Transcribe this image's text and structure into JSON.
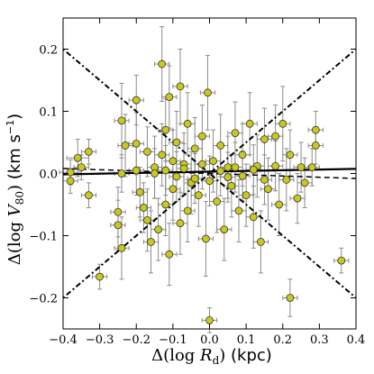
{
  "chart_data": {
    "type": "scatter",
    "title": "",
    "xlabel": "Δ(log R_d) (kpc)",
    "ylabel": "Δ(log V_80) (km s⁻¹)",
    "xlabel_parts": {
      "main": "Δ(log ",
      "var": "R",
      "sub": "d",
      "close": ") ",
      "unit": "(kpc)"
    },
    "ylabel_parts": {
      "main": "Δ(log ",
      "var": "V",
      "sub": "80",
      "close": ") ",
      "unit": "(km s",
      "unit_sup": "−1",
      "unit_close": ")"
    },
    "xlim": [
      -0.4,
      0.4
    ],
    "ylim": [
      -0.25,
      0.25
    ],
    "xticks": [
      -0.4,
      -0.3,
      -0.2,
      -0.1,
      0.0,
      0.1,
      0.2,
      0.3,
      0.4
    ],
    "xtick_labels": [
      "−0.4",
      "−0.3",
      "−0.2",
      "−0.1",
      "0.0",
      "0.1",
      "0.2",
      "0.3",
      "0.4"
    ],
    "yticks": [
      -0.2,
      -0.1,
      0.0,
      0.1,
      0.2
    ],
    "ytick_labels": [
      "−0.2",
      "−0.1",
      "0.0",
      "0.1",
      "0.2"
    ],
    "grid": false,
    "legend": "none",
    "colors": {
      "marker_fill": "#c8c81e",
      "marker_edge": "#333333",
      "errorbar": "#8c8c8c",
      "line": "#000000"
    },
    "lines": [
      {
        "name": "",
        "style": "solid",
        "slope": 0.011,
        "intercept": 0.003
      },
      {
        "name": "",
        "style": "dashed",
        "slope": -0.02,
        "intercept": 0.0
      },
      {
        "name": "",
        "style": "dashdot",
        "slope": 0.5,
        "intercept": 0.0
      },
      {
        "name": "",
        "style": "dashdot",
        "slope": -0.5,
        "intercept": 0.0
      }
    ],
    "points": [
      {
        "x": -0.38,
        "y": 0.002,
        "xerr": 0.03,
        "yerr": 0.02
      },
      {
        "x": -0.36,
        "y": 0.025,
        "xerr": 0.03,
        "yerr": 0.03
      },
      {
        "x": -0.35,
        "y": 0.01,
        "xerr": 0.02,
        "yerr": 0.02
      },
      {
        "x": -0.38,
        "y": -0.012,
        "xerr": 0.02,
        "yerr": 0.02
      },
      {
        "x": -0.33,
        "y": 0.035,
        "xerr": 0.02,
        "yerr": 0.02
      },
      {
        "x": -0.33,
        "y": -0.035,
        "xerr": 0.02,
        "yerr": 0.02
      },
      {
        "x": -0.3,
        "y": -0.166,
        "xerr": 0.02,
        "yerr": 0.02
      },
      {
        "x": -0.24,
        "y": 0.085,
        "xerr": 0.02,
        "yerr": 0.06
      },
      {
        "x": -0.23,
        "y": 0.045,
        "xerr": 0.02,
        "yerr": 0.05
      },
      {
        "x": -0.24,
        "y": 0.0,
        "xerr": 0.02,
        "yerr": 0.03
      },
      {
        "x": -0.25,
        "y": -0.062,
        "xerr": 0.02,
        "yerr": 0.04
      },
      {
        "x": -0.25,
        "y": -0.083,
        "xerr": 0.02,
        "yerr": 0.04
      },
      {
        "x": -0.24,
        "y": -0.12,
        "xerr": 0.02,
        "yerr": 0.05
      },
      {
        "x": -0.2,
        "y": 0.118,
        "xerr": 0.02,
        "yerr": 0.04
      },
      {
        "x": -0.2,
        "y": 0.048,
        "xerr": 0.02,
        "yerr": 0.05
      },
      {
        "x": -0.2,
        "y": 0.005,
        "xerr": 0.02,
        "yerr": 0.04
      },
      {
        "x": -0.19,
        "y": -0.03,
        "xerr": 0.02,
        "yerr": 0.04
      },
      {
        "x": -0.18,
        "y": -0.055,
        "xerr": 0.02,
        "yerr": 0.04
      },
      {
        "x": -0.17,
        "y": -0.075,
        "xerr": 0.02,
        "yerr": 0.05
      },
      {
        "x": -0.17,
        "y": 0.035,
        "xerr": 0.02,
        "yerr": 0.04
      },
      {
        "x": -0.16,
        "y": -0.11,
        "xerr": 0.02,
        "yerr": 0.05
      },
      {
        "x": -0.15,
        "y": 0.01,
        "xerr": 0.02,
        "yerr": 0.05
      },
      {
        "x": -0.14,
        "y": -0.09,
        "xerr": 0.02,
        "yerr": 0.05
      },
      {
        "x": -0.13,
        "y": 0.176,
        "xerr": 0.02,
        "yerr": 0.06
      },
      {
        "x": -0.13,
        "y": 0.03,
        "xerr": 0.02,
        "yerr": 0.05
      },
      {
        "x": -0.12,
        "y": -0.05,
        "xerr": 0.02,
        "yerr": 0.05
      },
      {
        "x": -0.12,
        "y": 0.07,
        "xerr": 0.02,
        "yerr": 0.05
      },
      {
        "x": -0.11,
        "y": -0.13,
        "xerr": 0.02,
        "yerr": 0.05
      },
      {
        "x": -0.11,
        "y": 0.123,
        "xerr": 0.02,
        "yerr": 0.05
      },
      {
        "x": -0.1,
        "y": 0.02,
        "xerr": 0.02,
        "yerr": 0.05
      },
      {
        "x": -0.1,
        "y": -0.025,
        "xerr": 0.02,
        "yerr": 0.05
      },
      {
        "x": -0.09,
        "y": 0.05,
        "xerr": 0.02,
        "yerr": 0.05
      },
      {
        "x": -0.08,
        "y": 0.14,
        "xerr": 0.02,
        "yerr": 0.06
      },
      {
        "x": -0.08,
        "y": -0.08,
        "xerr": 0.02,
        "yerr": 0.05
      },
      {
        "x": -0.07,
        "y": 0.015,
        "xerr": 0.02,
        "yerr": 0.05
      },
      {
        "x": -0.06,
        "y": -0.06,
        "xerr": 0.02,
        "yerr": 0.05
      },
      {
        "x": -0.06,
        "y": 0.08,
        "xerr": 0.02,
        "yerr": 0.05
      },
      {
        "x": -0.05,
        "y": -0.015,
        "xerr": 0.02,
        "yerr": 0.05
      },
      {
        "x": -0.04,
        "y": 0.04,
        "xerr": 0.02,
        "yerr": 0.05
      },
      {
        "x": -0.03,
        "y": -0.035,
        "xerr": 0.02,
        "yerr": 0.05
      },
      {
        "x": -0.02,
        "y": 0.06,
        "xerr": 0.02,
        "yerr": 0.05
      },
      {
        "x": -0.01,
        "y": -0.105,
        "xerr": 0.02,
        "yerr": 0.06
      },
      {
        "x": -0.005,
        "y": 0.13,
        "xerr": 0.02,
        "yerr": 0.06
      },
      {
        "x": 0.0,
        "y": -0.236,
        "xerr": 0.02,
        "yerr": 0.02
      },
      {
        "x": 0.01,
        "y": 0.02,
        "xerr": 0.02,
        "yerr": 0.05
      },
      {
        "x": 0.02,
        "y": -0.045,
        "xerr": 0.02,
        "yerr": 0.05
      },
      {
        "x": 0.03,
        "y": 0.045,
        "xerr": 0.02,
        "yerr": 0.05
      },
      {
        "x": 0.04,
        "y": -0.09,
        "xerr": 0.02,
        "yerr": 0.05
      },
      {
        "x": 0.05,
        "y": 0.01,
        "xerr": 0.02,
        "yerr": 0.05
      },
      {
        "x": 0.06,
        "y": -0.02,
        "xerr": 0.02,
        "yerr": 0.05
      },
      {
        "x": 0.07,
        "y": 0.065,
        "xerr": 0.02,
        "yerr": 0.05
      },
      {
        "x": 0.08,
        "y": -0.06,
        "xerr": 0.02,
        "yerr": 0.05
      },
      {
        "x": 0.09,
        "y": 0.03,
        "xerr": 0.02,
        "yerr": 0.05
      },
      {
        "x": 0.1,
        "y": -0.035,
        "xerr": 0.02,
        "yerr": 0.05
      },
      {
        "x": 0.11,
        "y": 0.08,
        "xerr": 0.02,
        "yerr": 0.05
      },
      {
        "x": 0.12,
        "y": -0.07,
        "xerr": 0.02,
        "yerr": 0.05
      },
      {
        "x": 0.13,
        "y": 0.012,
        "xerr": 0.02,
        "yerr": 0.05
      },
      {
        "x": 0.14,
        "y": -0.11,
        "xerr": 0.02,
        "yerr": 0.05
      },
      {
        "x": 0.15,
        "y": 0.055,
        "xerr": 0.02,
        "yerr": 0.05
      },
      {
        "x": 0.16,
        "y": -0.025,
        "xerr": 0.02,
        "yerr": 0.05
      },
      {
        "x": 0.18,
        "y": 0.06,
        "xerr": 0.02,
        "yerr": 0.05
      },
      {
        "x": 0.19,
        "y": -0.05,
        "xerr": 0.02,
        "yerr": 0.05
      },
      {
        "x": 0.2,
        "y": 0.08,
        "xerr": 0.02,
        "yerr": 0.06
      },
      {
        "x": 0.21,
        "y": -0.01,
        "xerr": 0.02,
        "yerr": 0.05
      },
      {
        "x": 0.22,
        "y": 0.03,
        "xerr": 0.02,
        "yerr": 0.04
      },
      {
        "x": 0.22,
        "y": -0.2,
        "xerr": 0.02,
        "yerr": 0.03
      },
      {
        "x": 0.24,
        "y": -0.04,
        "xerr": 0.02,
        "yerr": 0.04
      },
      {
        "x": 0.25,
        "y": 0.01,
        "xerr": 0.02,
        "yerr": 0.04
      },
      {
        "x": 0.26,
        "y": -0.015,
        "xerr": 0.02,
        "yerr": 0.04
      },
      {
        "x": 0.28,
        "y": 0.01,
        "xerr": 0.02,
        "yerr": 0.03
      },
      {
        "x": 0.29,
        "y": 0.045,
        "xerr": 0.02,
        "yerr": 0.03
      },
      {
        "x": 0.29,
        "y": 0.07,
        "xerr": 0.02,
        "yerr": 0.03
      },
      {
        "x": 0.36,
        "y": -0.14,
        "xerr": 0.02,
        "yerr": 0.02
      },
      {
        "x": -0.15,
        "y": 0.0,
        "xerr": 0.02,
        "yerr": 0.04
      },
      {
        "x": -0.12,
        "y": 0.005,
        "xerr": 0.02,
        "yerr": 0.04
      },
      {
        "x": -0.09,
        "y": -0.005,
        "xerr": 0.02,
        "yerr": 0.04
      },
      {
        "x": -0.07,
        "y": 0.008,
        "xerr": 0.02,
        "yerr": 0.04
      },
      {
        "x": -0.04,
        "y": -0.008,
        "xerr": 0.02,
        "yerr": 0.04
      },
      {
        "x": -0.02,
        "y": 0.015,
        "xerr": 0.02,
        "yerr": 0.04
      },
      {
        "x": 0.0,
        "y": -0.012,
        "xerr": 0.02,
        "yerr": 0.04
      },
      {
        "x": 0.03,
        "y": 0.004,
        "xerr": 0.02,
        "yerr": 0.04
      },
      {
        "x": 0.05,
        "y": -0.006,
        "xerr": 0.02,
        "yerr": 0.04
      },
      {
        "x": 0.07,
        "y": 0.01,
        "xerr": 0.02,
        "yerr": 0.04
      },
      {
        "x": 0.09,
        "y": -0.004,
        "xerr": 0.02,
        "yerr": 0.04
      },
      {
        "x": 0.12,
        "y": 0.006,
        "xerr": 0.02,
        "yerr": 0.04
      },
      {
        "x": 0.15,
        "y": -0.01,
        "xerr": 0.02,
        "yerr": 0.04
      },
      {
        "x": 0.18,
        "y": 0.012,
        "xerr": 0.02,
        "yerr": 0.04
      }
    ]
  }
}
